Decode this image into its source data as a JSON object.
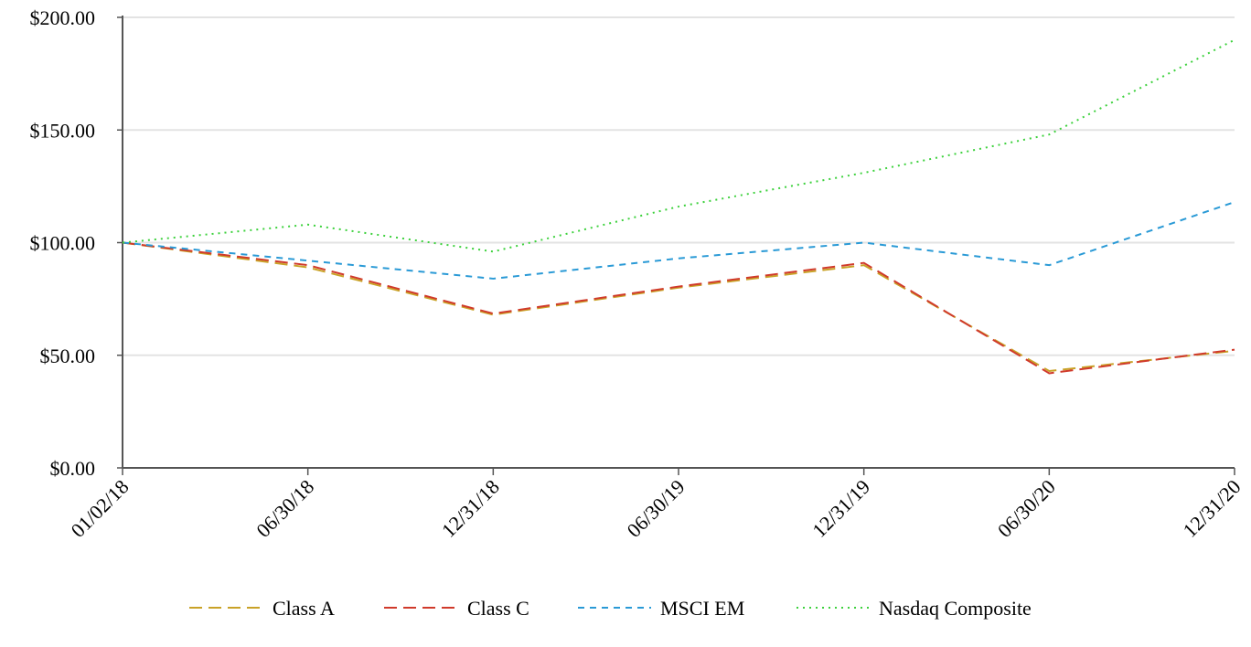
{
  "chart_data": {
    "type": "line",
    "title": "",
    "xlabel": "",
    "ylabel": "",
    "categories": [
      "01/02/18",
      "06/30/18",
      "12/31/18",
      "06/30/19",
      "12/31/19",
      "06/30/20",
      "12/31/20"
    ],
    "yticks": [
      "$0.00",
      "$50.00",
      "$100.00",
      "$150.00",
      "$200.00"
    ],
    "ylim": [
      0,
      200
    ],
    "grid": true,
    "legend_position": "bottom",
    "series": [
      {
        "name": "Class A",
        "color": "#c9a227",
        "dash": "dashed-long",
        "values": [
          100,
          89,
          68,
          80,
          90,
          43,
          52
        ]
      },
      {
        "name": "Class C",
        "color": "#d03a2b",
        "dash": "dashed-long",
        "values": [
          100,
          90,
          68.5,
          80.5,
          91,
          42,
          52.5
        ]
      },
      {
        "name": "MSCI EM",
        "color": "#2a9ad6",
        "dash": "dashed-short",
        "values": [
          100,
          92,
          84,
          93,
          100,
          90,
          118
        ]
      },
      {
        "name": "Nasdaq Composite",
        "color": "#3dd13d",
        "dash": "dotted",
        "values": [
          100,
          108,
          96,
          116,
          131,
          148,
          190
        ]
      }
    ]
  }
}
